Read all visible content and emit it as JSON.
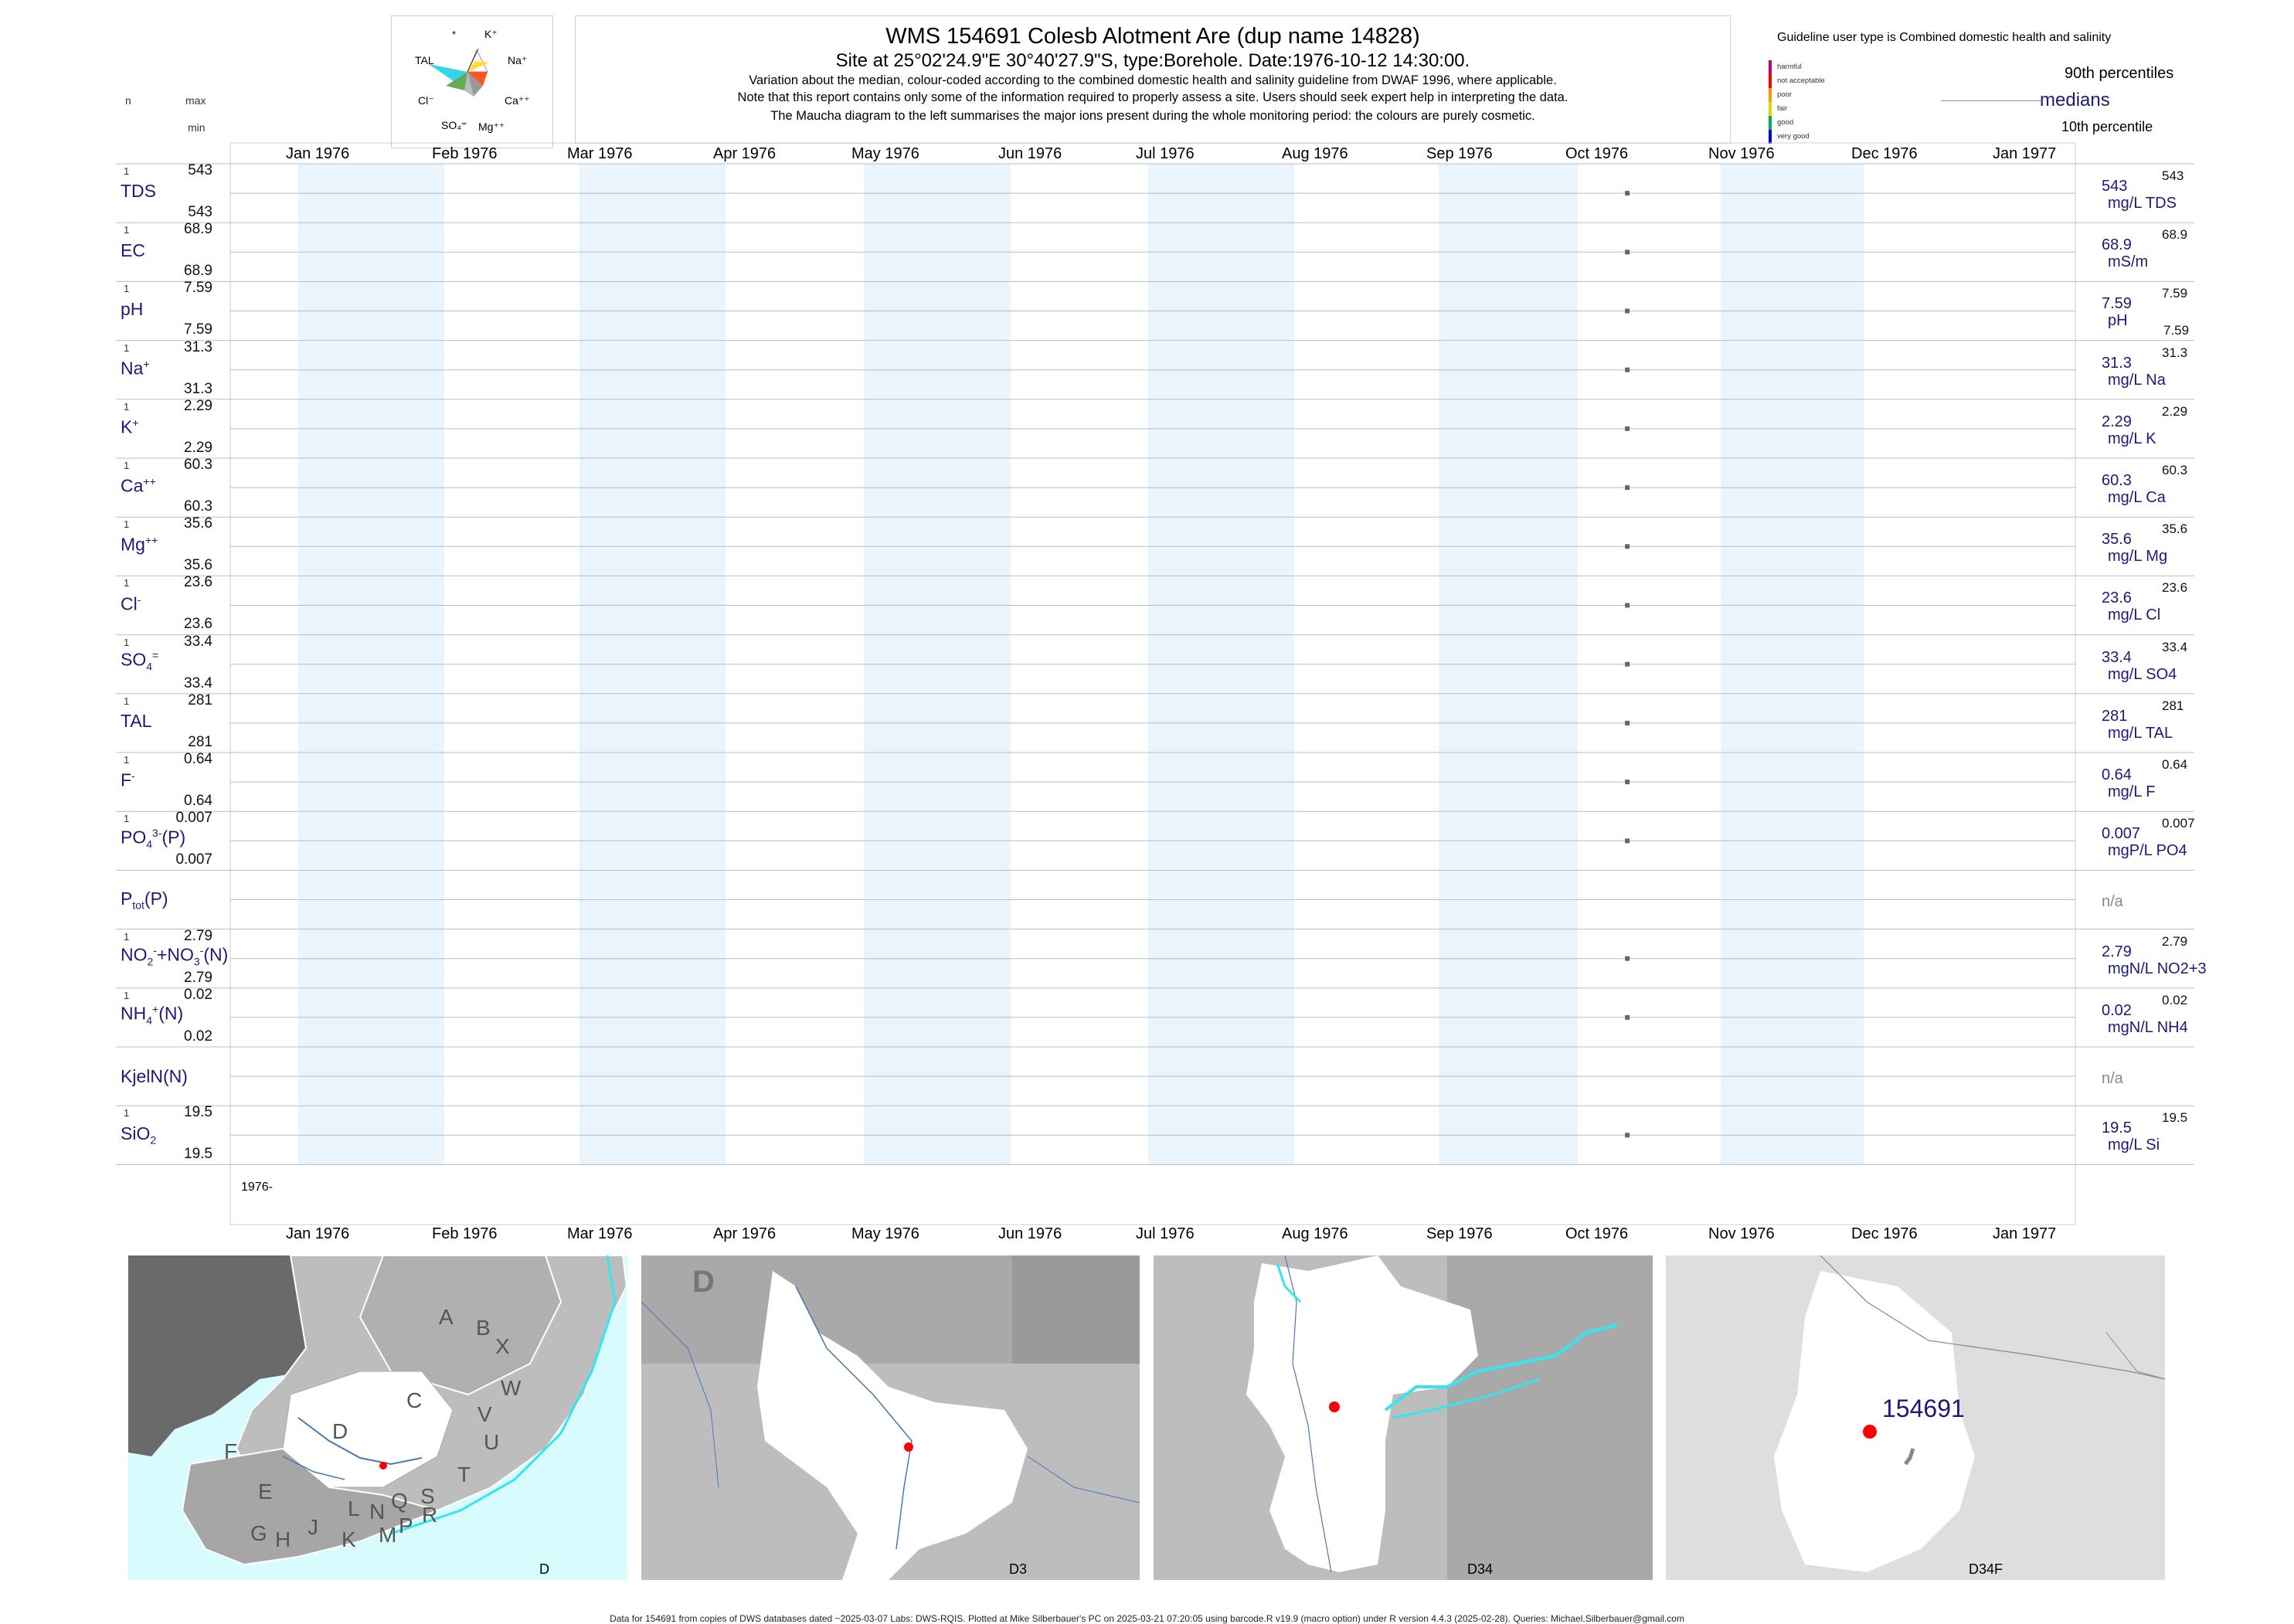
{
  "header": {
    "title": "WMS 154691  Colesb Alotment Are (dup name 14828)",
    "subtitle": "Site at 25°02'24.9\"E 30°40'27.9\"S, type:Borehole. Date:1976-10-12 14:30:00.",
    "note_1": "Variation about the median,  colour-coded according to the combined domestic health and salinity guideline from DWAF 1996, where applicable.",
    "note_2": "Note that this report contains only some of the information required to properly assess a site. Users should seek expert help in interpreting the data.",
    "note_3": "The Maucha diagram to the left summarises the major ions present during the whole monitoring period: the colours are purely cosmetic.",
    "col_n": "n",
    "col_max": "max",
    "col_min": "min"
  },
  "maucha": {
    "labels": [
      "*",
      "K+",
      "Na+",
      "Ca++",
      "Mg++",
      "SO4=",
      "Cl-",
      "TAL"
    ]
  },
  "guideline": {
    "title": "Guideline user type is Combined domestic health and salinity",
    "classes": [
      {
        "label": "harmful",
        "color": "#c0007a"
      },
      {
        "label": "not acceptable",
        "color": "#ff0000"
      },
      {
        "label": "poor",
        "color": "#ff9900"
      },
      {
        "label": "fair",
        "color": "#e8d800"
      },
      {
        "label": "good",
        "color": "#00b050"
      },
      {
        "label": "very good",
        "color": "#0000cc"
      }
    ],
    "p90": "90th percentiles",
    "medians": "medians",
    "p10": "10th percentile"
  },
  "chart_data": {
    "type": "scatter",
    "x_range": [
      "1976-01-01",
      "1977-01-01"
    ],
    "x_ticks": [
      "Jan 1976",
      "Feb 1976",
      "Mar 1976",
      "Apr 1976",
      "May 1976",
      "Jun 1976",
      "Jul 1976",
      "Aug 1976",
      "Sep 1976",
      "Oct 1976",
      "Nov 1976",
      "Dec 1976",
      "Jan 1977"
    ],
    "year_label": "1976-",
    "sample_date": "1976-10-12",
    "series": [
      {
        "name": "TDS",
        "n": "1",
        "max": "543",
        "min": "543",
        "median": "543",
        "unit": "mg/L TDS",
        "p90": "543",
        "p10": ""
      },
      {
        "name": "EC",
        "n": "1",
        "max": "68.9",
        "min": "68.9",
        "median": "68.9",
        "unit": "mS/m",
        "p90": "68.9",
        "p10": ""
      },
      {
        "name": "pH",
        "n": "1",
        "max": "7.59",
        "min": "7.59",
        "median": "7.59",
        "unit": "pH",
        "p90": "7.59",
        "p10": "7.59"
      },
      {
        "name": "Na+",
        "n": "1",
        "max": "31.3",
        "min": "31.3",
        "median": "31.3",
        "unit": "mg/L Na",
        "p90": "31.3",
        "p10": ""
      },
      {
        "name": "K+",
        "n": "1",
        "max": "2.29",
        "min": "2.29",
        "median": "2.29",
        "unit": "mg/L K",
        "p90": "2.29",
        "p10": ""
      },
      {
        "name": "Ca++",
        "n": "1",
        "max": "60.3",
        "min": "60.3",
        "median": "60.3",
        "unit": "mg/L Ca",
        "p90": "60.3",
        "p10": ""
      },
      {
        "name": "Mg++",
        "n": "1",
        "max": "35.6",
        "min": "35.6",
        "median": "35.6",
        "unit": "mg/L Mg",
        "p90": "35.6",
        "p10": ""
      },
      {
        "name": "Cl-",
        "n": "1",
        "max": "23.6",
        "min": "23.6",
        "median": "23.6",
        "unit": "mg/L Cl",
        "p90": "23.6",
        "p10": ""
      },
      {
        "name": "SO4=",
        "n": "1",
        "max": "33.4",
        "min": "33.4",
        "median": "33.4",
        "unit": "mg/L SO4",
        "p90": "33.4",
        "p10": ""
      },
      {
        "name": "TAL",
        "n": "1",
        "max": "281",
        "min": "281",
        "median": "281",
        "unit": "mg/L TAL",
        "p90": "281",
        "p10": ""
      },
      {
        "name": "F-",
        "n": "1",
        "max": "0.64",
        "min": "0.64",
        "median": "0.64",
        "unit": "mg/L F",
        "p90": "0.64",
        "p10": ""
      },
      {
        "name": "PO4(P)",
        "n": "1",
        "max": "0.007",
        "min": "0.007",
        "median": "0.007",
        "unit": "mgP/L PO4",
        "p90": "0.007",
        "p10": ""
      },
      {
        "name": "Ptot(P)",
        "n": "",
        "max": "",
        "min": "",
        "median": "n/a",
        "unit": "",
        "p90": "",
        "p10": ""
      },
      {
        "name": "NO2+NO3(N)",
        "n": "1",
        "max": "2.79",
        "min": "2.79",
        "median": "2.79",
        "unit": "mgN/L NO2+3",
        "p90": "2.79",
        "p10": ""
      },
      {
        "name": "NH4(N)",
        "n": "1",
        "max": "0.02",
        "min": "0.02",
        "median": "0.02",
        "unit": "mgN/L NH4",
        "p90": "0.02",
        "p10": ""
      },
      {
        "name": "KjelN(N)",
        "n": "",
        "max": "",
        "min": "",
        "median": "n/a",
        "unit": "",
        "p90": "",
        "p10": ""
      },
      {
        "name": "SiO2",
        "n": "1",
        "max": "19.5",
        "min": "19.5",
        "median": "19.5",
        "unit": "mg/L Si",
        "p90": "19.5",
        "p10": ""
      }
    ]
  },
  "maps": [
    {
      "caption": "D",
      "letters": [
        "A",
        "B",
        "X",
        "W",
        "C",
        "V",
        "U",
        "D",
        "T",
        "F",
        "E",
        "S",
        "R",
        "Q",
        "N",
        "L",
        "P",
        "M",
        "K",
        "J",
        "H",
        "G"
      ]
    },
    {
      "caption": "D3",
      "letters": [
        "D"
      ]
    },
    {
      "caption": "D34",
      "letters": []
    },
    {
      "caption": "D34F",
      "site_label": "154691"
    }
  ],
  "footer": "Data for 154691 from copies of DWS databases dated ~2025-03-07 Labs: DWS-RQIS. Plotted at Mike Silberbauer's PC on 2025-03-21 07:20:05 using barcode.R v19.9 (macro option) under R version 4.4.3 (2025-02-28). Queries: Michael.Silberbauer@gmail.com"
}
